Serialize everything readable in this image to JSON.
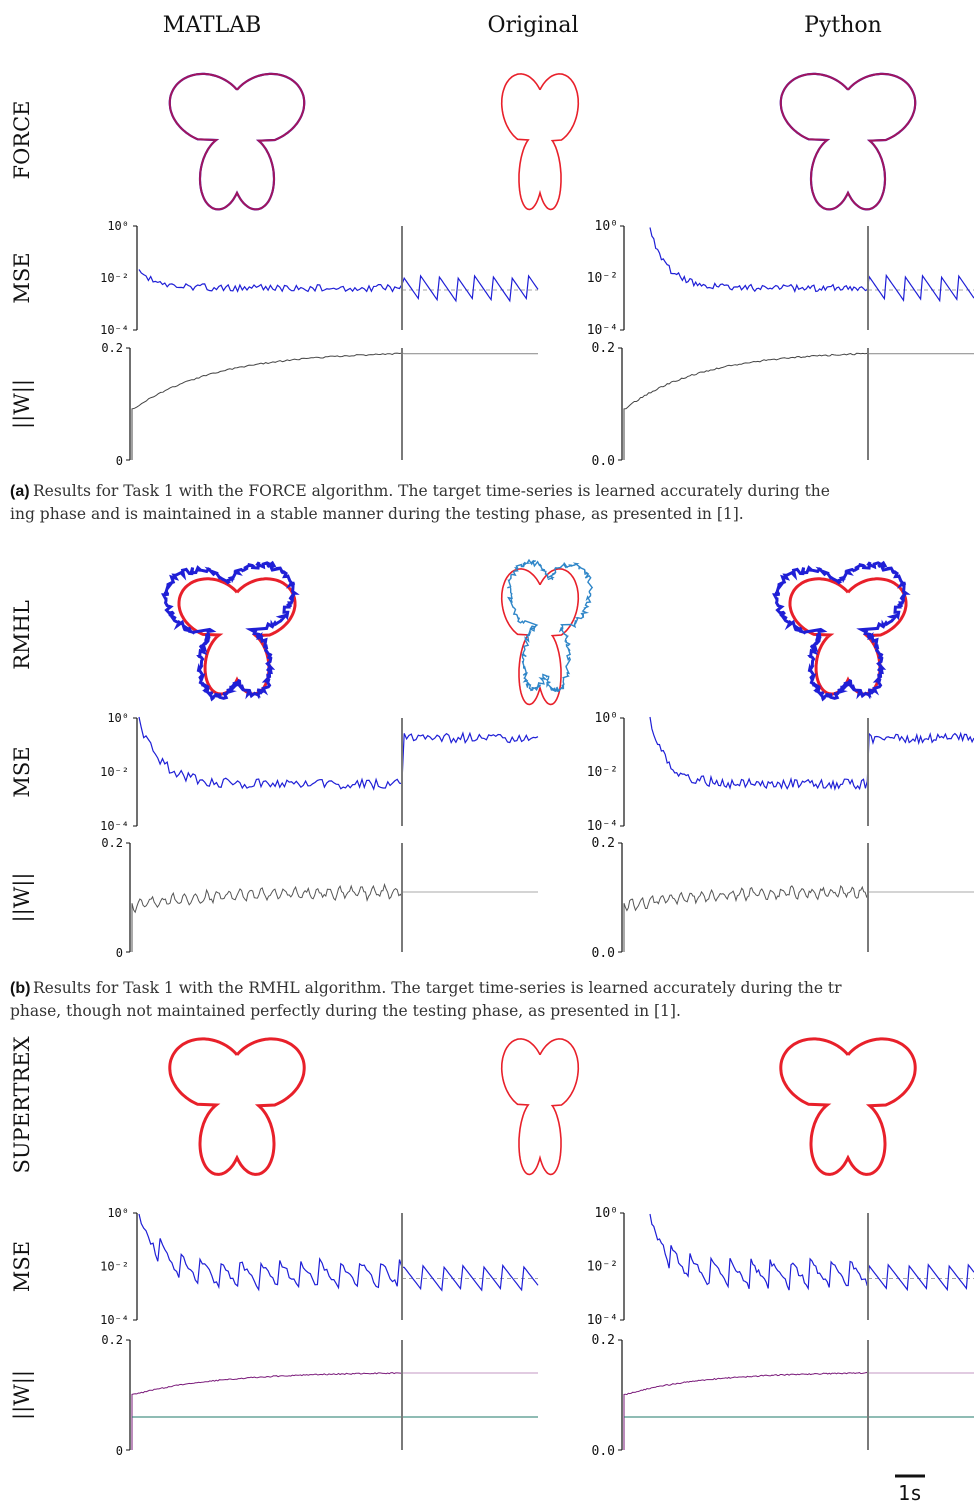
{
  "columns": [
    "MATLAB",
    "Original",
    "Python"
  ],
  "colors": {
    "target": "#e8202a",
    "output": "#1f1fd6",
    "original_alt": "#2f86c8",
    "force_overlay": "#a1155e",
    "weights": "#555555",
    "weights_a": "#7a1a7a",
    "weights_b": "#1f7a6a",
    "divider": "#7a7a7a",
    "mse_ref": "#888888"
  },
  "rows": [
    {
      "label": "FORCE",
      "caption_label": "(a)",
      "caption_lines": [
        "Results for Task 1 with the FORCE algorithm. The target time-series is learned accurately during the",
        "ing phase and is maintained in a stable manner during the testing phase, as presented in [1]."
      ]
    },
    {
      "label": "RMHL",
      "caption_label": "(b)",
      "caption_lines": [
        "Results for Task 1 with the RMHL algorithm. The target time-series is learned accurately during the tr",
        "phase, though not maintained perfectly during the testing phase, as presented in [1]."
      ]
    },
    {
      "label": "SUPERTREX",
      "caption_label": "",
      "caption_lines": []
    }
  ],
  "axis_labels": {
    "mse": "MSE",
    "weights": "||W||"
  },
  "ticks": {
    "matlab_mse": [
      "10⁰",
      "10⁻²",
      "10⁻⁴"
    ],
    "python_mse": [
      "10⁰",
      "10⁻²",
      "10⁻⁴"
    ],
    "matlab_w": [
      "0.2",
      "0"
    ],
    "python_w": [
      "0.2",
      "0.0"
    ]
  },
  "scale_bar": "1s",
  "chart_data": {
    "type": "line",
    "title": "",
    "series": [
      {
        "name": "FORCE",
        "mse_train_level": 0.015,
        "mse_test_level": 0.01,
        "w_final": 0.19
      },
      {
        "name": "RMHL",
        "mse_train_level": 0.03,
        "mse_test_level": 0.3,
        "w_final": 0.11
      },
      {
        "name": "SUPERTREX",
        "mse_train_level": 0.03,
        "mse_test_level": 0.01,
        "w_final_a": 0.14,
        "w_final_b": 0.06
      }
    ],
    "mse_ylim": [
      0.0001,
      1
    ],
    "mse_scale": "log",
    "w_ylim": [
      0,
      0.2
    ]
  }
}
